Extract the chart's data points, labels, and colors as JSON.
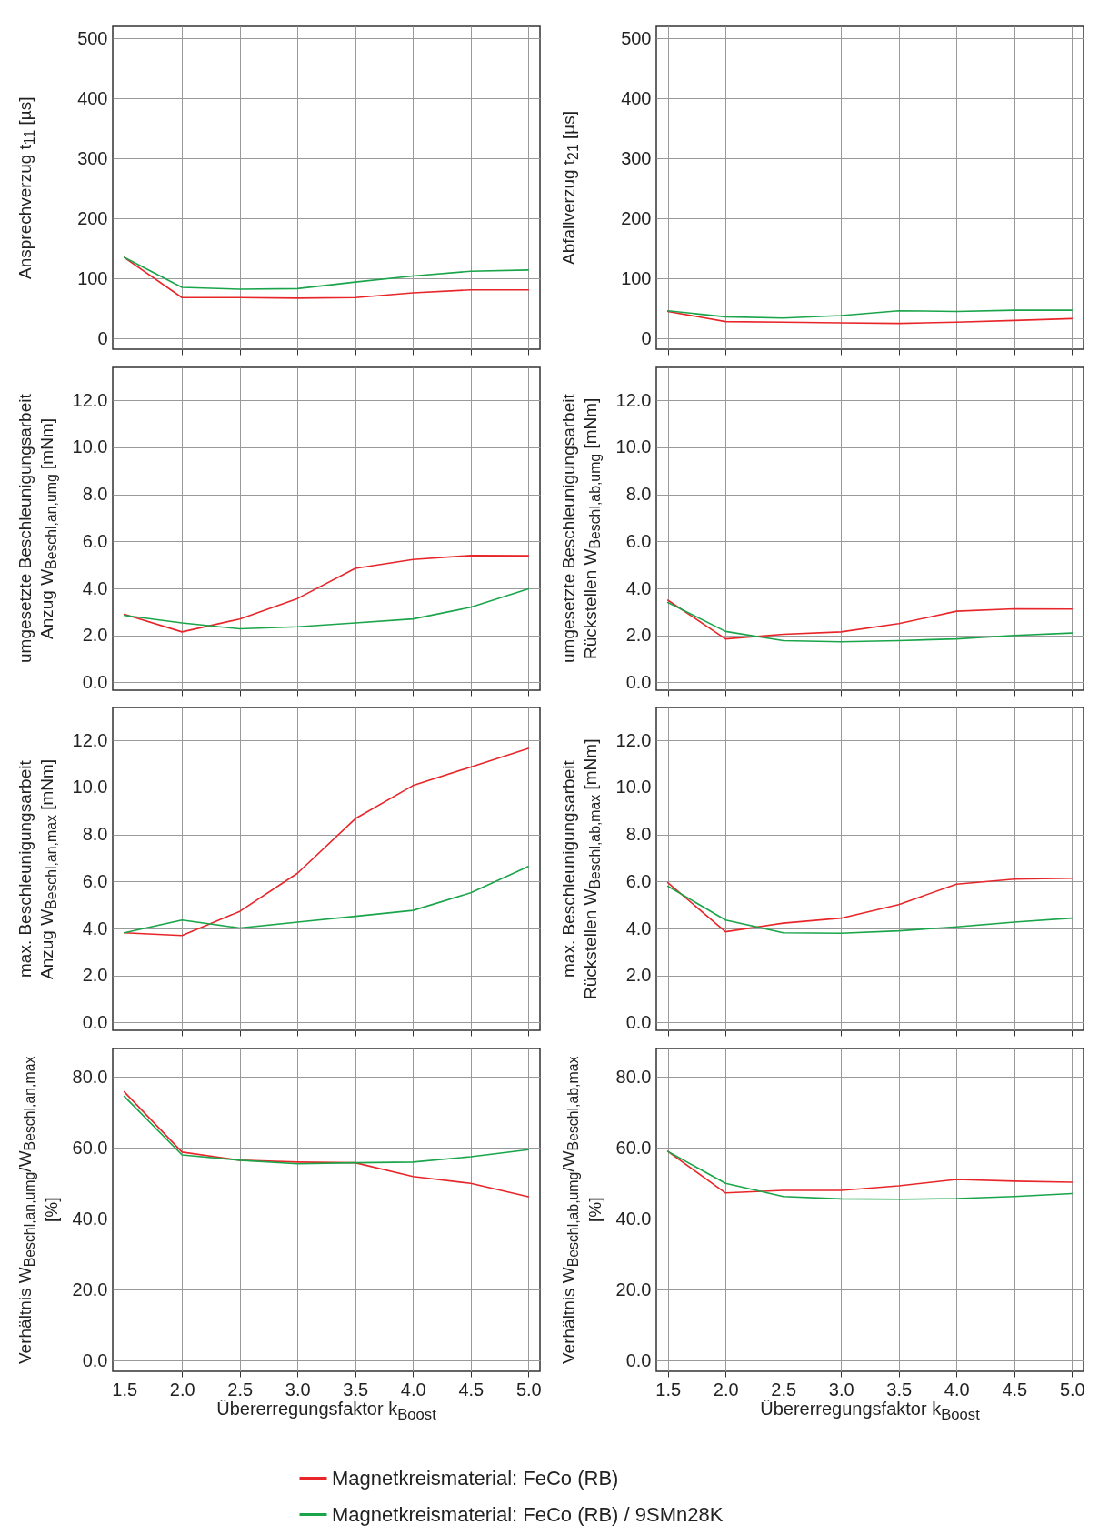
{
  "chart_data": [
    {
      "type": "line",
      "ylabel": "Ansprechverzug t$_{11}$ [µs]",
      "x": [
        1.5,
        2,
        2.5,
        3,
        3.5,
        4,
        4.5,
        5
      ],
      "xlim": [
        1.4,
        5.1
      ],
      "xticks": [
        {
          "value": 1.5,
          "label": null
        },
        {
          "value": 2,
          "label": null
        },
        {
          "value": 2.5,
          "label": null
        },
        {
          "value": 3,
          "label": null
        },
        {
          "value": 3.5,
          "label": null
        },
        {
          "value": 4,
          "label": null
        },
        {
          "value": 4.5,
          "label": null
        },
        {
          "value": 5,
          "label": null
        }
      ],
      "ylim": [
        -18,
        520
      ],
      "yticks": [
        0,
        100,
        200,
        300,
        400,
        500
      ],
      "grid": true,
      "tick_labels": "y",
      "series": [
        {
          "color": "#e8262a",
          "values": [
            135,
            68,
            68,
            67,
            68,
            76,
            81,
            81
          ]
        },
        {
          "color": "#1aa54b",
          "values": [
            135,
            85,
            82,
            83,
            94,
            104,
            112,
            114
          ]
        }
      ]
    },
    {
      "type": "line",
      "ylabel": "Abfallverzug t$_{21}$ [µs]",
      "x": [
        1.5,
        2,
        2.5,
        3,
        3.5,
        4,
        4.5,
        5
      ],
      "xlim": [
        1.4,
        5.1
      ],
      "xticks": [
        {
          "value": 1.5,
          "label": null
        },
        {
          "value": 2,
          "label": null
        },
        {
          "value": 2.5,
          "label": null
        },
        {
          "value": 3,
          "label": null
        },
        {
          "value": 3.5,
          "label": null
        },
        {
          "value": 4,
          "label": null
        },
        {
          "value": 4.5,
          "label": null
        },
        {
          "value": 5,
          "label": null
        }
      ],
      "ylim": [
        -18,
        520
      ],
      "yticks": [
        0,
        100,
        200,
        300,
        400,
        500
      ],
      "grid": true,
      "tick_labels": "y",
      "series": [
        {
          "color": "#e8262a",
          "values": [
            45,
            28,
            27,
            26,
            25,
            27,
            30,
            33
          ]
        },
        {
          "color": "#1aa54b",
          "values": [
            46,
            36,
            34,
            38,
            46,
            45,
            47,
            47
          ]
        }
      ]
    },
    {
      "type": "line",
      "ylabel": "umgesetzte Beschleunigungsarbeit\nAnzug W$_{Beschl,an,umg}$ [mNm]",
      "x": [
        1.5,
        2,
        2.5,
        3,
        3.5,
        4,
        4.5,
        5
      ],
      "xlim": [
        1.4,
        5.1
      ],
      "xticks": [
        {
          "value": 1.5,
          "label": null
        },
        {
          "value": 2,
          "label": null
        },
        {
          "value": 2.5,
          "label": null
        },
        {
          "value": 3,
          "label": null
        },
        {
          "value": 3.5,
          "label": null
        },
        {
          "value": 4,
          "label": null
        },
        {
          "value": 4.5,
          "label": null
        },
        {
          "value": 5,
          "label": null
        }
      ],
      "ylim": [
        -0.33,
        13.4
      ],
      "yticks": [
        {
          "value": 0,
          "label": "0.0"
        },
        {
          "value": 2,
          "label": "2.0"
        },
        {
          "value": 4,
          "label": "4.0"
        },
        {
          "value": 6,
          "label": "6.0"
        },
        {
          "value": 8,
          "label": "8.0"
        },
        {
          "value": 10,
          "label": "10.0"
        },
        {
          "value": 12,
          "label": "12.0"
        }
      ],
      "grid": true,
      "tick_labels": "y",
      "series": [
        {
          "color": "#e8262a",
          "values": [
            2.9,
            2.15,
            2.7,
            3.57,
            4.85,
            5.23,
            5.4,
            5.39
          ]
        },
        {
          "color": "#1aa54b",
          "values": [
            2.85,
            2.53,
            2.28,
            2.37,
            2.53,
            2.7,
            3.2,
            3.98
          ]
        }
      ]
    },
    {
      "type": "line",
      "ylabel": "umgesetzte Beschleunigungsarbeit\nRückstellen W$_{Beschl,ab,umg}$ [mNm]",
      "x": [
        1.5,
        2,
        2.5,
        3,
        3.5,
        4,
        4.5,
        5
      ],
      "xlim": [
        1.4,
        5.1
      ],
      "xticks": [
        {
          "value": 1.5,
          "label": null
        },
        {
          "value": 2,
          "label": null
        },
        {
          "value": 2.5,
          "label": null
        },
        {
          "value": 3,
          "label": null
        },
        {
          "value": 3.5,
          "label": null
        },
        {
          "value": 4,
          "label": null
        },
        {
          "value": 4.5,
          "label": null
        },
        {
          "value": 5,
          "label": null
        }
      ],
      "ylim": [
        -0.33,
        13.4
      ],
      "yticks": [
        {
          "value": 0,
          "label": "0.0"
        },
        {
          "value": 2,
          "label": "2.0"
        },
        {
          "value": 4,
          "label": "4.0"
        },
        {
          "value": 6,
          "label": "6.0"
        },
        {
          "value": 8,
          "label": "8.0"
        },
        {
          "value": 10,
          "label": "10.0"
        },
        {
          "value": 12,
          "label": "12.0"
        }
      ],
      "grid": true,
      "tick_labels": "y",
      "series": [
        {
          "color": "#e8262a",
          "values": [
            3.5,
            1.85,
            2.05,
            2.15,
            2.5,
            3.03,
            3.13,
            3.12
          ]
        },
        {
          "color": "#1aa54b",
          "values": [
            3.4,
            2.17,
            1.78,
            1.73,
            1.78,
            1.85,
            2.0,
            2.1
          ]
        }
      ]
    },
    {
      "type": "line",
      "ylabel": "max. Beschleunigungsarbeit\nAnzug W$_{Beschl,an,max}$ [mNm]",
      "x": [
        1.5,
        2,
        2.5,
        3,
        3.5,
        4,
        4.5,
        5
      ],
      "xlim": [
        1.4,
        5.1
      ],
      "xticks": [
        {
          "value": 1.5,
          "label": null
        },
        {
          "value": 2,
          "label": null
        },
        {
          "value": 2.5,
          "label": null
        },
        {
          "value": 3,
          "label": null
        },
        {
          "value": 3.5,
          "label": null
        },
        {
          "value": 4,
          "label": null
        },
        {
          "value": 4.5,
          "label": null
        },
        {
          "value": 5,
          "label": null
        }
      ],
      "ylim": [
        -0.33,
        13.4
      ],
      "yticks": [
        {
          "value": 0,
          "label": "0.0"
        },
        {
          "value": 2,
          "label": "2.0"
        },
        {
          "value": 4,
          "label": "4.0"
        },
        {
          "value": 6,
          "label": "6.0"
        },
        {
          "value": 8,
          "label": "8.0"
        },
        {
          "value": 10,
          "label": "10.0"
        },
        {
          "value": 12,
          "label": "12.0"
        }
      ],
      "grid": true,
      "tick_labels": "y",
      "series": [
        {
          "color": "#e8262a",
          "values": [
            3.82,
            3.7,
            4.73,
            6.35,
            8.67,
            10.08,
            10.87,
            11.66
          ]
        },
        {
          "color": "#1aa54b",
          "values": [
            3.82,
            4.36,
            4.02,
            4.27,
            4.52,
            4.77,
            5.52,
            6.64
          ]
        }
      ]
    },
    {
      "type": "line",
      "ylabel": "max. Beschleunigungsarbeit\nRückstellen W$_{Beschl,ab,max}$ [mNm]",
      "x": [
        1.5,
        2,
        2.5,
        3,
        3.5,
        4,
        4.5,
        5
      ],
      "xlim": [
        1.4,
        5.1
      ],
      "xticks": [
        {
          "value": 1.5,
          "label": null
        },
        {
          "value": 2,
          "label": null
        },
        {
          "value": 2.5,
          "label": null
        },
        {
          "value": 3,
          "label": null
        },
        {
          "value": 3.5,
          "label": null
        },
        {
          "value": 4,
          "label": null
        },
        {
          "value": 4.5,
          "label": null
        },
        {
          "value": 5,
          "label": null
        }
      ],
      "ylim": [
        -0.33,
        13.4
      ],
      "yticks": [
        {
          "value": 0,
          "label": "0.0"
        },
        {
          "value": 2,
          "label": "2.0"
        },
        {
          "value": 4,
          "label": "4.0"
        },
        {
          "value": 6,
          "label": "6.0"
        },
        {
          "value": 8,
          "label": "8.0"
        },
        {
          "value": 10,
          "label": "10.0"
        },
        {
          "value": 12,
          "label": "12.0"
        }
      ],
      "grid": true,
      "tick_labels": "y",
      "series": [
        {
          "color": "#e8262a",
          "values": [
            5.95,
            3.86,
            4.23,
            4.44,
            5.02,
            5.89,
            6.1,
            6.14
          ]
        },
        {
          "color": "#1aa54b",
          "values": [
            5.8,
            4.36,
            3.82,
            3.8,
            3.9,
            4.07,
            4.27,
            4.44
          ]
        }
      ]
    },
    {
      "type": "line",
      "ylabel": "Verhältnis W$_{Beschl,an,umg}$/W$_{Beschl,an,max}$ [%]",
      "xlabel": "Übererregungsfaktor k$_{Boost}$",
      "x": [
        1.5,
        2,
        2.5,
        3,
        3.5,
        4,
        4.5,
        5
      ],
      "xlim": [
        1.4,
        5.1
      ],
      "xticks": [
        1.5,
        {
          "value": 2,
          "label": "2.0"
        },
        2.5,
        {
          "value": 3,
          "label": "3.0"
        },
        3.5,
        {
          "value": 4,
          "label": "4.0"
        },
        4.5,
        {
          "value": 5,
          "label": "5.0"
        }
      ],
      "ylim": [
        -3,
        88
      ],
      "yticks": [
        {
          "value": 0,
          "label": "0.0"
        },
        {
          "value": 20,
          "label": "20.0"
        },
        {
          "value": 40,
          "label": "40.0"
        },
        {
          "value": 60,
          "label": "60.0"
        },
        {
          "value": 80,
          "label": "80.0"
        }
      ],
      "grid": true,
      "legend": "bottom",
      "series": [
        {
          "name": "Magnetkreismaterial: FeCo (RB)",
          "color": "#e8262a",
          "values": [
            75.8,
            58.8,
            56.5,
            56,
            55.8,
            51.9,
            50,
            46.2
          ]
        },
        {
          "name": "Magnetkreismaterial: FeCo (RB) / 9SMn28K",
          "color": "#1aa54b",
          "values": [
            74.5,
            58,
            56.5,
            55.5,
            55.8,
            56,
            57.5,
            59.5
          ]
        }
      ]
    },
    {
      "type": "line",
      "ylabel": "Verhältnis W$_{Beschl,ab,umg}$/W$_{Beschl,ab,max}$ [%]",
      "xlabel": "Übererregungsfaktor k$_{Boost}$",
      "x": [
        1.5,
        2,
        2.5,
        3,
        3.5,
        4,
        4.5,
        5
      ],
      "xlim": [
        1.4,
        5.1
      ],
      "xticks": [
        1.5,
        {
          "value": 2,
          "label": "2.0"
        },
        2.5,
        {
          "value": 3,
          "label": "3.0"
        },
        3.5,
        {
          "value": 4,
          "label": "4.0"
        },
        4.5,
        {
          "value": 5,
          "label": "5.0"
        }
      ],
      "ylim": [
        -3,
        88
      ],
      "yticks": [
        {
          "value": 0,
          "label": "0.0"
        },
        {
          "value": 20,
          "label": "20.0"
        },
        {
          "value": 40,
          "label": "40.0"
        },
        {
          "value": 60,
          "label": "60.0"
        },
        {
          "value": 80,
          "label": "80.0"
        }
      ],
      "grid": true,
      "series": [
        {
          "color": "#e8262a",
          "values": [
            59,
            47.3,
            48,
            48,
            49.3,
            51.1,
            50.6,
            50.3
          ]
        },
        {
          "color": "#1aa54b",
          "values": [
            59,
            50,
            46.3,
            45.6,
            45.5,
            45.7,
            46.3,
            47.1
          ]
        }
      ]
    }
  ]
}
